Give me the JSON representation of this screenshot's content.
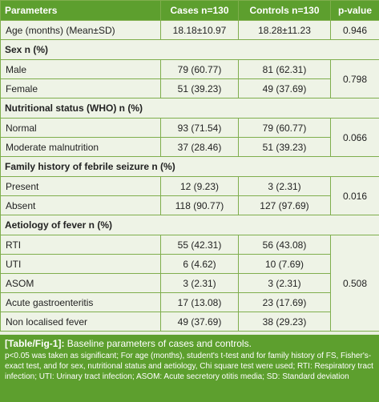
{
  "table": {
    "headers": [
      "Parameters",
      "Cases n=130",
      "Controls n=130",
      "p-value"
    ],
    "age_row": {
      "label": "Age (months) (Mean±SD)",
      "cases": "18.18±10.97",
      "controls": "18.28±11.23",
      "p": "0.946"
    },
    "sections": [
      {
        "title": "Sex n (%)",
        "p": "0.798",
        "rows": [
          {
            "label": "Male",
            "cases": "79 (60.77)",
            "controls": "81 (62.31)"
          },
          {
            "label": "Female",
            "cases": "51 (39.23)",
            "controls": "49 (37.69)"
          }
        ]
      },
      {
        "title": "Nutritional status (WHO) n (%)",
        "p": "0.066",
        "rows": [
          {
            "label": "Normal",
            "cases": "93 (71.54)",
            "controls": "79 (60.77)"
          },
          {
            "label": "Moderate malnutrition",
            "cases": "37 (28.46)",
            "controls": "51 (39.23)"
          }
        ]
      },
      {
        "title": "Family history of febrile seizure n (%)",
        "p": "0.016",
        "rows": [
          {
            "label": "Present",
            "cases": "12 (9.23)",
            "controls": "3 (2.31)"
          },
          {
            "label": "Absent",
            "cases": "118 (90.77)",
            "controls": "127 (97.69)"
          }
        ]
      },
      {
        "title": "Aetiology of fever n (%)",
        "p": "0.508",
        "rows": [
          {
            "label": "RTI",
            "cases": "55 (42.31)",
            "controls": "56 (43.08)"
          },
          {
            "label": "UTI",
            "cases": "6 (4.62)",
            "controls": "10 (7.69)"
          },
          {
            "label": "ASOM",
            "cases": "3 (2.31)",
            "controls": "3 (2.31)"
          },
          {
            "label": "Acute gastroenteritis",
            "cases": "17 (13.08)",
            "controls": "23 (17.69)"
          },
          {
            "label": "Non localised fever",
            "cases": "49 (37.69)",
            "controls": "38 (29.23)"
          }
        ]
      }
    ]
  },
  "caption": {
    "tag": "[Table/Fig-1]:",
    "title": "Baseline parameters of cases and controls.",
    "notes": "p<0.05 was taken as significant; For age (months), student's t-test and for family history of FS, Fisher's-exact test, and for sex, nutritional status and aetiology, Chi square test were used; RTI: Respiratory tract infection; UTI: Urinary tract infection; ASOM: Acute secretory otitis media; SD: Standard deviation"
  },
  "colors": {
    "header_bg": "#5d9f2e",
    "cell_bg": "#eef3e6",
    "border": "#7fae4d"
  }
}
